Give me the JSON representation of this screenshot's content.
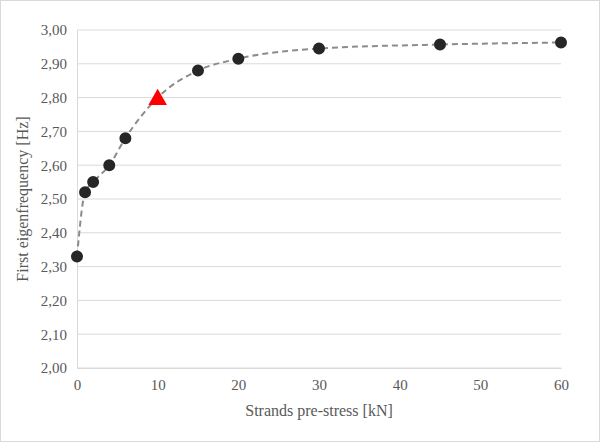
{
  "chart_data": {
    "type": "scatter",
    "x_label": "Strands pre-stress [kN]",
    "y_label": "First eigenfrequency [Hz]",
    "x": [
      0,
      1,
      2,
      4,
      6,
      10,
      15,
      20,
      30,
      45,
      60
    ],
    "series": [
      {
        "type": "line",
        "line_style": "dashed",
        "marker": "none",
        "color": "#8c8c8c",
        "values": [
          2.33,
          2.52,
          2.55,
          2.6,
          2.68,
          2.8,
          2.88,
          2.915,
          2.945,
          2.957,
          2.963
        ]
      },
      {
        "type": "scatter",
        "marker": "circle",
        "color": "#262626",
        "values": [
          2.33,
          2.52,
          2.55,
          2.6,
          2.68,
          null,
          2.88,
          2.915,
          2.945,
          2.957,
          2.963
        ]
      },
      {
        "type": "scatter",
        "marker": "triangle",
        "color": "#ff0000",
        "values": [
          null,
          null,
          null,
          null,
          null,
          2.8,
          null,
          null,
          null,
          null,
          null
        ]
      }
    ],
    "xlim": [
      0,
      60
    ],
    "xticks": [
      0,
      10,
      20,
      30,
      40,
      50,
      60
    ],
    "ylim": [
      2.0,
      3.0
    ],
    "yticks": [
      {
        "value": 2.0,
        "label": "2,00"
      },
      {
        "value": 2.1,
        "label": "2,10"
      },
      {
        "value": 2.2,
        "label": "2,20"
      },
      {
        "value": 2.3,
        "label": "2,30"
      },
      {
        "value": 2.4,
        "label": "2,40"
      },
      {
        "value": 2.5,
        "label": "2,50"
      },
      {
        "value": 2.6,
        "label": "2,60"
      },
      {
        "value": 2.7,
        "label": "2,70"
      },
      {
        "value": 2.8,
        "label": "2,80"
      },
      {
        "value": 2.9,
        "label": "2,90"
      },
      {
        "value": 3.0,
        "label": "3,00"
      }
    ],
    "grid": true
  }
}
